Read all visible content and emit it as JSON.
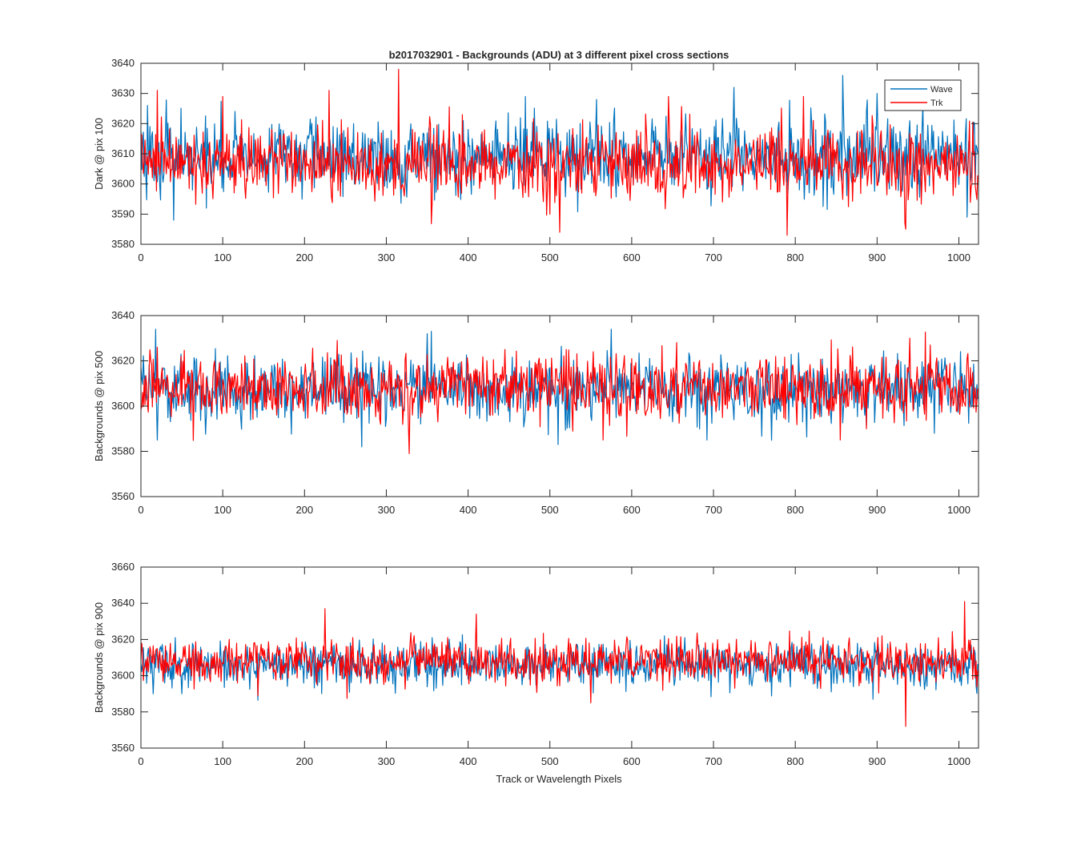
{
  "figure": {
    "title": "b2017032901 - Backgrounds (ADU) at 3 different pixel cross sections",
    "xlabel": "Track or Wavelength Pixels"
  },
  "legend": {
    "placement": "top-right",
    "entries": [
      {
        "name": "Wave",
        "color": "#0072BD"
      },
      {
        "name": "Trk",
        "color": "#FF0000"
      }
    ]
  },
  "chart_data": [
    {
      "type": "line",
      "ylabel": "Dark @ pix 100",
      "xlim": [
        0,
        1024
      ],
      "ylim": [
        3580,
        3640
      ],
      "xticks": [
        0,
        100,
        200,
        300,
        400,
        500,
        600,
        700,
        800,
        900,
        1000
      ],
      "yticks": [
        3580,
        3590,
        3600,
        3610,
        3620,
        3630,
        3640
      ],
      "series": [
        {
          "name": "Wave",
          "color": "#0072BD",
          "mean": 3609,
          "sd": 6,
          "x": [
            8,
            40,
            80,
            260,
            470,
            557,
            725,
            858,
            900,
            1010
          ],
          "values": [
            3626,
            3588,
            3592,
            3620,
            3629,
            3628,
            3632,
            3636,
            3630,
            3589
          ]
        },
        {
          "name": "Trk",
          "color": "#FF0000",
          "mean": 3607,
          "sd": 6,
          "x": [
            20,
            100,
            230,
            315,
            322,
            500,
            512,
            645,
            790,
            810,
            935
          ],
          "values": [
            3631,
            3629,
            3631,
            3638,
            3596,
            3590,
            3584,
            3629,
            3583,
            3629,
            3585
          ]
        }
      ]
    },
    {
      "type": "line",
      "ylabel": "Backgrounds @ pix 500",
      "xlim": [
        0,
        1024
      ],
      "ylim": [
        3560,
        3640
      ],
      "xticks": [
        0,
        100,
        200,
        300,
        400,
        500,
        600,
        700,
        800,
        900,
        1000
      ],
      "yticks": [
        3560,
        3580,
        3600,
        3620,
        3640
      ],
      "series": [
        {
          "name": "Wave",
          "color": "#0072BD",
          "mean": 3607,
          "sd": 7,
          "x": [
            18,
            270,
            350,
            355,
            510,
            575,
            692,
            970
          ],
          "values": [
            3634,
            3582,
            3632,
            3633,
            3583,
            3634,
            3585,
            3588
          ]
        },
        {
          "name": "Trk",
          "color": "#FF0000",
          "mean": 3608,
          "sd": 7,
          "x": [
            20,
            240,
            328,
            445,
            565,
            855,
            940,
            965
          ],
          "values": [
            3626,
            3629,
            3579,
            3625,
            3585,
            3585,
            3630,
            3627
          ]
        }
      ]
    },
    {
      "type": "line",
      "ylabel": "Backgrounds @ pix 900",
      "xlim": [
        0,
        1024
      ],
      "ylim": [
        3560,
        3660
      ],
      "xticks": [
        0,
        100,
        200,
        300,
        400,
        500,
        600,
        700,
        800,
        900,
        1000
      ],
      "yticks": [
        3560,
        3580,
        3600,
        3620,
        3640,
        3660
      ],
      "series": [
        {
          "name": "Wave",
          "color": "#0072BD",
          "mean": 3606,
          "sd": 6,
          "x": [
            15,
            50,
            640,
            640,
            895
          ],
          "values": [
            3590,
            3590,
            3584,
            3622,
            3587
          ]
        },
        {
          "name": "Trk",
          "color": "#FF0000",
          "mean": 3608,
          "sd": 6,
          "x": [
            225,
            410,
            550,
            935,
            1007
          ],
          "values": [
            3637,
            3634,
            3585,
            3572,
            3641
          ]
        }
      ]
    }
  ]
}
